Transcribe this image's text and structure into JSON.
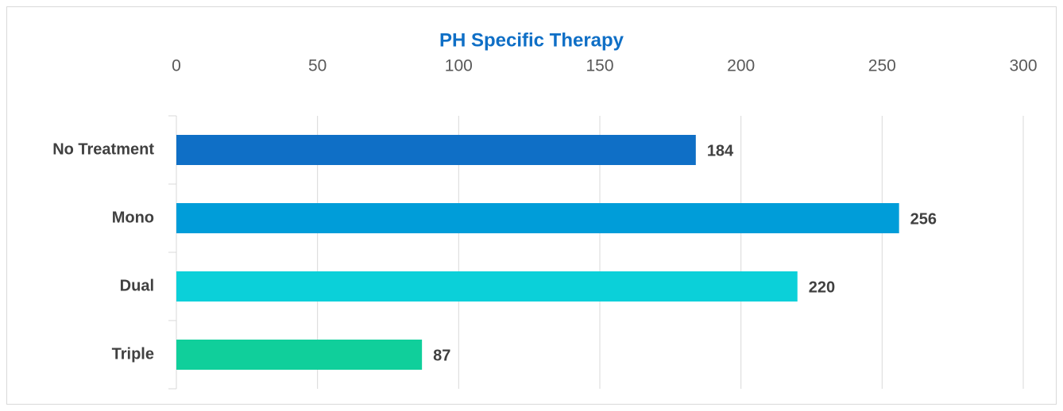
{
  "chart_data": {
    "type": "bar",
    "orientation": "horizontal",
    "title": "PH Specific Therapy",
    "categories": [
      "No Treatment",
      "Mono",
      "Dual",
      "Triple"
    ],
    "values": [
      184,
      256,
      220,
      87
    ],
    "colors": [
      "#0f6fc6",
      "#009dd9",
      "#0bd0d9",
      "#10cf9b"
    ],
    "xlim": [
      0,
      300
    ],
    "xticks": [
      0,
      50,
      100,
      150,
      200,
      250,
      300
    ],
    "grid": true
  }
}
